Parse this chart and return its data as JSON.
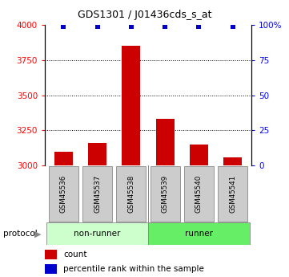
{
  "title": "GDS1301 / J01436cds_s_at",
  "samples": [
    "GSM45536",
    "GSM45537",
    "GSM45538",
    "GSM45539",
    "GSM45540",
    "GSM45541"
  ],
  "counts": [
    3100,
    3160,
    3850,
    3330,
    3150,
    3060
  ],
  "percentile_ranks": [
    99,
    99,
    99,
    99,
    99,
    99
  ],
  "groups": [
    "non-runner",
    "non-runner",
    "non-runner",
    "runner",
    "runner",
    "runner"
  ],
  "nonrunner_color": "#ccffcc",
  "runner_color": "#66ee66",
  "bar_color": "#cc0000",
  "dot_color": "#0000cc",
  "ylim_left": [
    3000,
    4000
  ],
  "ylim_right": [
    0,
    100
  ],
  "yticks_left": [
    3000,
    3250,
    3500,
    3750,
    4000
  ],
  "yticks_right": [
    0,
    25,
    50,
    75,
    100
  ],
  "ytick_labels_right": [
    "0",
    "25",
    "50",
    "75",
    "100%"
  ],
  "grid_values": [
    3250,
    3500,
    3750
  ],
  "legend_count_label": "count",
  "legend_pct_label": "percentile rank within the sample",
  "background_color": "#ffffff",
  "bar_width": 0.55,
  "sample_box_color": "#cccccc"
}
